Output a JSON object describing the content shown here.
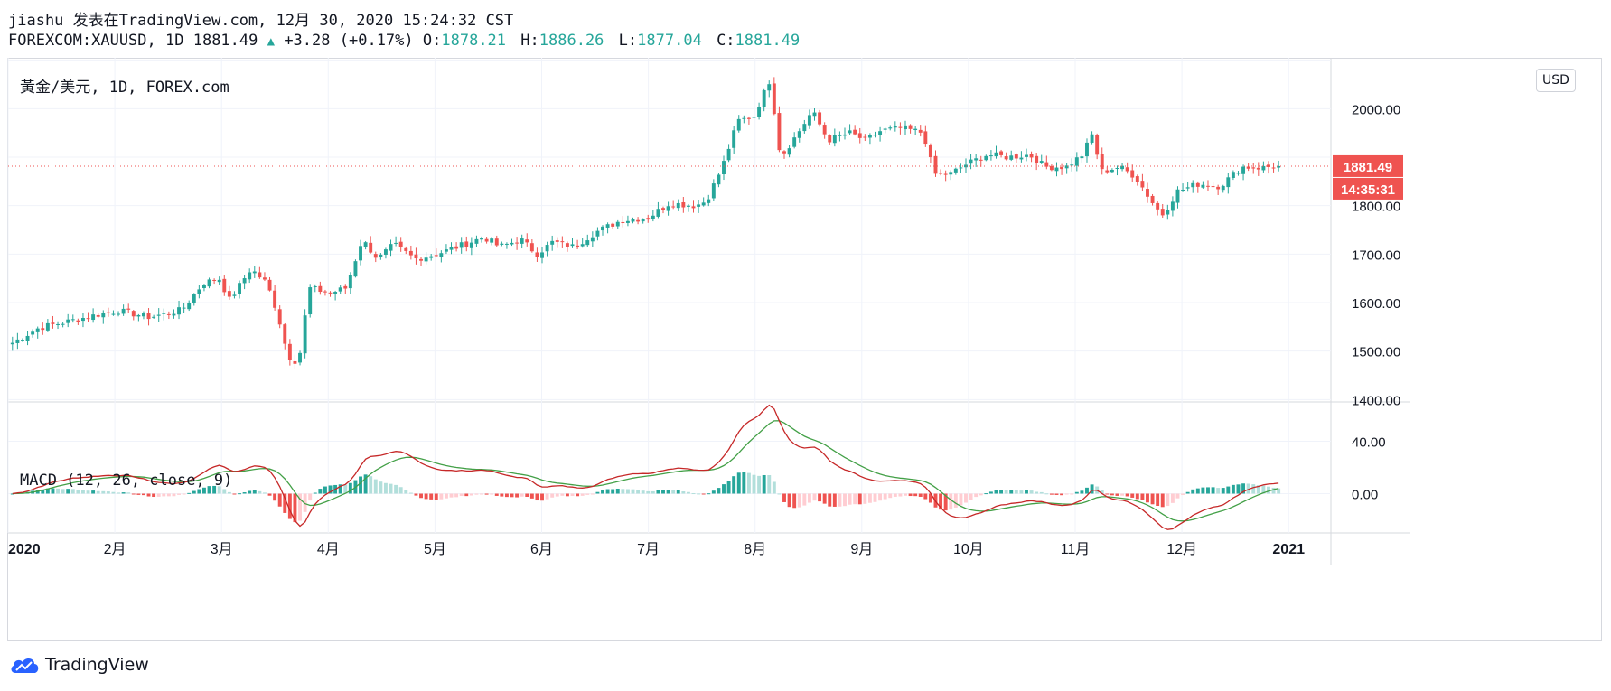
{
  "header": {
    "publish_line": "jiashu 发表在TradingView.com, 12月 30, 2020 15:24:32 CST",
    "symbol": "FOREXCOM:XAUUSD, 1D",
    "last": "1881.49",
    "change": "+3.28",
    "change_pct": "(+0.17%)",
    "o_label": "O:",
    "o_value": "1878.21",
    "h_label": "H:",
    "h_value": "1886.26",
    "l_label": "L:",
    "l_value": "1877.04",
    "c_label": "C:",
    "c_value": "1881.49"
  },
  "price_pane": {
    "title": "黃金/美元, 1D, FOREX.com",
    "currency_button": "USD",
    "last_price_badge": "1881.49",
    "countdown_badge": "14:35:31"
  },
  "macd_pane": {
    "title": "MACD (12, 26, close, 9)"
  },
  "footer": {
    "brand": "TradingView"
  },
  "colors": {
    "up": "#26a69a",
    "down": "#ef5350",
    "hist_up_strong": "#26a69a",
    "hist_up_weak": "#b2dfdb",
    "hist_down_strong": "#ef5350",
    "hist_down_weak": "#ffcdd2",
    "macd_line": "#c62828",
    "signal_line": "#43a047",
    "grid": "#f0f3fa"
  },
  "chart_data": [
    {
      "type": "candlestick",
      "title": "黃金/美元, 1D, FOREX.com",
      "x_ticks": [
        "2020",
        "2月",
        "3月",
        "4月",
        "5月",
        "6月",
        "7月",
        "8月",
        "9月",
        "10月",
        "11月",
        "12月",
        "2021"
      ],
      "y_ticks": [
        1400,
        1500,
        1600,
        1700,
        1800,
        1900,
        2000,
        2100
      ],
      "y_tick_labels": [
        "1400.00",
        "1500.00",
        "1600.00",
        "1700.00",
        "1800.00",
        "",
        "2000.00",
        ""
      ],
      "ylim": [
        1395,
        2105
      ],
      "last_price": 1881.49,
      "grid": true,
      "anchors": [
        {
          "month": 0.0,
          "close": 1517
        },
        {
          "month": 0.25,
          "close": 1548
        },
        {
          "month": 0.5,
          "close": 1560
        },
        {
          "month": 0.8,
          "close": 1575
        },
        {
          "month": 1.0,
          "close": 1583
        },
        {
          "month": 1.3,
          "close": 1570
        },
        {
          "month": 1.6,
          "close": 1585
        },
        {
          "month": 1.8,
          "close": 1640
        },
        {
          "month": 1.95,
          "close": 1650
        },
        {
          "month": 2.05,
          "close": 1605
        },
        {
          "month": 2.25,
          "close": 1670
        },
        {
          "month": 2.4,
          "close": 1640
        },
        {
          "month": 2.5,
          "close": 1580
        },
        {
          "month": 2.6,
          "close": 1490
        },
        {
          "month": 2.7,
          "close": 1475
        },
        {
          "month": 2.8,
          "close": 1630
        },
        {
          "month": 3.0,
          "close": 1620
        },
        {
          "month": 3.15,
          "close": 1630
        },
        {
          "month": 3.3,
          "close": 1730
        },
        {
          "month": 3.45,
          "close": 1690
        },
        {
          "month": 3.6,
          "close": 1720
        },
        {
          "month": 3.8,
          "close": 1690
        },
        {
          "month": 4.0,
          "close": 1700
        },
        {
          "month": 4.2,
          "close": 1715
        },
        {
          "month": 4.45,
          "close": 1735
        },
        {
          "month": 4.6,
          "close": 1715
        },
        {
          "month": 4.8,
          "close": 1730
        },
        {
          "month": 4.95,
          "close": 1700
        },
        {
          "month": 5.1,
          "close": 1725
        },
        {
          "month": 5.3,
          "close": 1715
        },
        {
          "month": 5.5,
          "close": 1745
        },
        {
          "month": 5.75,
          "close": 1770
        },
        {
          "month": 6.0,
          "close": 1775
        },
        {
          "month": 6.2,
          "close": 1805
        },
        {
          "month": 6.45,
          "close": 1800
        },
        {
          "month": 6.55,
          "close": 1810
        },
        {
          "month": 6.7,
          "close": 1880
        },
        {
          "month": 6.85,
          "close": 1975
        },
        {
          "month": 7.0,
          "close": 1985
        },
        {
          "month": 7.15,
          "close": 2060
        },
        {
          "month": 7.25,
          "close": 1900
        },
        {
          "month": 7.4,
          "close": 1945
        },
        {
          "month": 7.55,
          "close": 1995
        },
        {
          "month": 7.7,
          "close": 1935
        },
        {
          "month": 7.9,
          "close": 1950
        },
        {
          "month": 8.05,
          "close": 1935
        },
        {
          "month": 8.2,
          "close": 1955
        },
        {
          "month": 8.4,
          "close": 1960
        },
        {
          "month": 8.6,
          "close": 1950
        },
        {
          "month": 8.7,
          "close": 1865
        },
        {
          "month": 8.85,
          "close": 1865
        },
        {
          "month": 9.0,
          "close": 1885
        },
        {
          "month": 9.2,
          "close": 1905
        },
        {
          "month": 9.4,
          "close": 1900
        },
        {
          "month": 9.6,
          "close": 1905
        },
        {
          "month": 9.75,
          "close": 1880
        },
        {
          "month": 9.95,
          "close": 1880
        },
        {
          "month": 10.1,
          "close": 1905
        },
        {
          "month": 10.2,
          "close": 1950
        },
        {
          "month": 10.27,
          "close": 1870
        },
        {
          "month": 10.45,
          "close": 1880
        },
        {
          "month": 10.6,
          "close": 1860
        },
        {
          "month": 10.75,
          "close": 1810
        },
        {
          "month": 10.85,
          "close": 1780
        },
        {
          "month": 11.0,
          "close": 1830
        },
        {
          "month": 11.2,
          "close": 1845
        },
        {
          "month": 11.4,
          "close": 1840
        },
        {
          "month": 11.6,
          "close": 1880
        },
        {
          "month": 11.8,
          "close": 1878
        },
        {
          "month": 11.9,
          "close": 1881
        }
      ]
    },
    {
      "type": "line",
      "title": "MACD (12, 26, close, 9)",
      "series": [
        {
          "name": "MACD",
          "values_from": "computed"
        },
        {
          "name": "Signal",
          "values_from": "computed"
        },
        {
          "name": "Histogram",
          "values_from": "computed"
        }
      ],
      "y_ticks": [
        0,
        40
      ],
      "y_tick_labels": [
        "0.00",
        "40.00"
      ],
      "ylim": [
        -30,
        70
      ]
    }
  ]
}
